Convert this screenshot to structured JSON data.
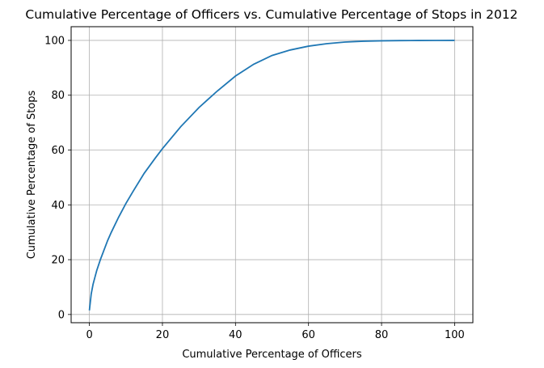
{
  "chart_data": {
    "type": "line",
    "title": "Cumulative Percentage of Officers vs. Cumulative Percentage of Stops in 2012",
    "xlabel": "Cumulative Percentage of Officers",
    "ylabel": "Cumulative Percentage of Stops",
    "xlim": [
      -5,
      105
    ],
    "ylim": [
      -3,
      105
    ],
    "xticks": [
      0,
      20,
      40,
      60,
      80,
      100
    ],
    "yticks": [
      0,
      20,
      40,
      60,
      80,
      100
    ],
    "grid": true,
    "line_color": "#1f77b4",
    "x": [
      0,
      0.5,
      1,
      1.5,
      2,
      3,
      4,
      5,
      6,
      8,
      10,
      12,
      15,
      18,
      20,
      25,
      30,
      35,
      40,
      45,
      50,
      55,
      60,
      65,
      70,
      75,
      80,
      85,
      90,
      95,
      100
    ],
    "y": [
      1.5,
      7.5,
      11,
      13.5,
      16,
      20,
      23.5,
      27,
      30,
      35.5,
      40.5,
      45,
      51.5,
      57,
      60.5,
      68.5,
      75.5,
      81.5,
      87,
      91.3,
      94.5,
      96.5,
      97.9,
      98.8,
      99.4,
      99.7,
      99.85,
      99.93,
      99.97,
      99.99,
      100
    ]
  }
}
